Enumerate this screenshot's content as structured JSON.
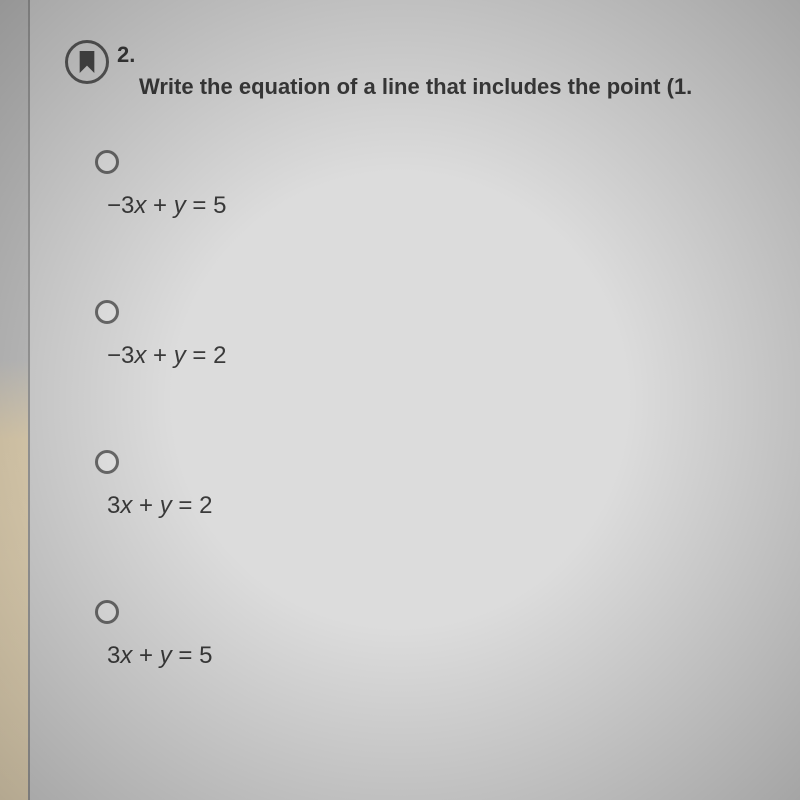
{
  "question": {
    "number": "2.",
    "prompt": "Write the equation of a line that includes the point (1.",
    "bookmark_icon_color": "#4a4a4a"
  },
  "options": [
    {
      "coef": "−3",
      "rhs": "5"
    },
    {
      "coef": "−3",
      "rhs": "2"
    },
    {
      "coef": "3",
      "rhs": "2"
    },
    {
      "coef": "3",
      "rhs": "5"
    }
  ],
  "colors": {
    "background": "#dcdcdc",
    "text": "#3a3a3a",
    "border": "#6a6a6a"
  }
}
